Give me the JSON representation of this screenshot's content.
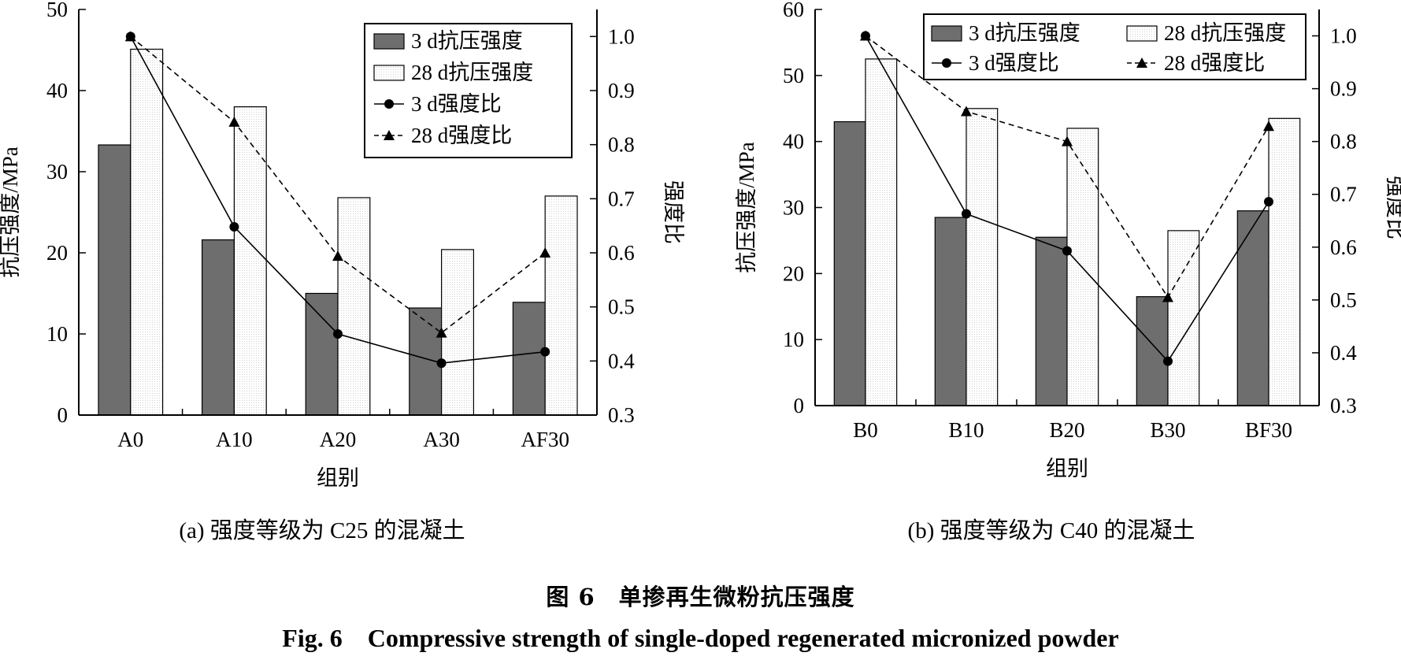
{
  "figure_caption_cn": "图 6　单掺再生微粉抗压强度",
  "figure_caption_en": "Fig. 6　Compressive strength of single-doped regenerated micronized powder",
  "colors": {
    "bar3": "#6e6e6e",
    "bar28": "#ffffff",
    "axis": "#000000"
  },
  "chart_data": [
    {
      "type": "bar",
      "subtitle": "(a) 强度等级为 C25 的混凝土",
      "xlabel": "组别",
      "ylabel": "抗压强度/MPa",
      "y2label": "强度比",
      "categories": [
        "A0",
        "A10",
        "A20",
        "A30",
        "AF30"
      ],
      "ylim": [
        0,
        50
      ],
      "yticks": [
        0,
        10,
        20,
        30,
        40,
        50
      ],
      "y2lim": [
        0.3,
        1.05
      ],
      "y2ticks": [
        "0.3",
        "0.4",
        "0.5",
        "0.6",
        "0.7",
        "0.8",
        "0.9",
        "1.0"
      ],
      "series": [
        {
          "name": "3 d抗压强度",
          "kind": "bar",
          "axis": "left",
          "values": [
            33.3,
            21.6,
            15.0,
            13.2,
            13.9
          ]
        },
        {
          "name": "28 d抗压强度",
          "kind": "bar",
          "axis": "left",
          "values": [
            45.1,
            38.0,
            26.8,
            20.4,
            27.0
          ]
        },
        {
          "name": "3 d强度比",
          "kind": "line",
          "marker": "circle",
          "dash": "solid",
          "axis": "right",
          "values": [
            1.0,
            0.648,
            0.45,
            0.396,
            0.417
          ]
        },
        {
          "name": "28 d强度比",
          "kind": "line",
          "marker": "triangle",
          "dash": "dashed",
          "axis": "right",
          "values": [
            1.0,
            0.842,
            0.594,
            0.452,
            0.6
          ]
        }
      ],
      "legend": {
        "placement": "top-right",
        "columns": 1
      }
    },
    {
      "type": "bar",
      "subtitle": "(b) 强度等级为 C40 的混凝土",
      "xlabel": "组别",
      "ylabel": "抗压强度/MPa",
      "y2label": "强度比",
      "categories": [
        "B0",
        "B10",
        "B20",
        "B30",
        "BF30"
      ],
      "ylim": [
        0,
        60
      ],
      "yticks": [
        0,
        10,
        20,
        30,
        40,
        50,
        60
      ],
      "y2lim": [
        0.3,
        1.05
      ],
      "y2ticks": [
        "0.3",
        "0.4",
        "0.5",
        "0.6",
        "0.7",
        "0.8",
        "0.9",
        "1.0"
      ],
      "series": [
        {
          "name": "3 d抗压强度",
          "kind": "bar",
          "axis": "left",
          "values": [
            43.0,
            28.5,
            25.5,
            16.5,
            29.5
          ]
        },
        {
          "name": "28 d抗压强度",
          "kind": "bar",
          "axis": "left",
          "values": [
            52.5,
            45.0,
            42.0,
            26.5,
            43.5
          ]
        },
        {
          "name": "3 d强度比",
          "kind": "line",
          "marker": "circle",
          "dash": "solid",
          "axis": "right",
          "values": [
            1.0,
            0.663,
            0.593,
            0.384,
            0.686
          ]
        },
        {
          "name": "28 d强度比",
          "kind": "line",
          "marker": "triangle",
          "dash": "dashed",
          "axis": "right",
          "values": [
            1.0,
            0.857,
            0.8,
            0.505,
            0.829
          ]
        }
      ],
      "legend": {
        "placement": "top",
        "columns": 2
      }
    }
  ]
}
